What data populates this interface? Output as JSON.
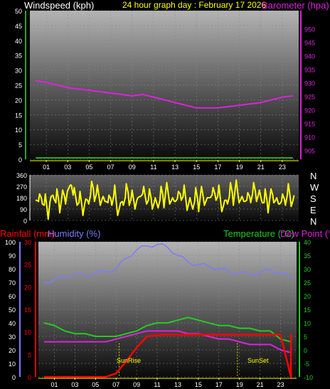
{
  "header": {
    "title": "24 hour graph day : February 17 2026",
    "left_label": "Windspeed (kph)",
    "right_label": "Barometer (hpa)"
  },
  "time_ticks": [
    "01",
    "03",
    "05",
    "07",
    "09",
    "11",
    "13",
    "15",
    "17",
    "19",
    "21",
    "23"
  ],
  "colors": {
    "wind": "#22aa22",
    "barometer": "#dd22dd",
    "direction": "#ffff00",
    "rain": "#ff0000",
    "humidity": "#7b7bff",
    "temperature": "#22cc22",
    "dewpoint": "#dd22dd",
    "title": "#ffff00",
    "axis": "#ffffff"
  },
  "chart_data": [
    {
      "type": "line",
      "x": [
        0,
        1,
        2,
        3,
        4,
        5,
        6,
        7,
        8,
        9,
        10,
        11,
        12,
        13,
        14,
        15,
        16,
        17,
        18,
        19,
        20,
        21,
        22,
        23,
        24
      ],
      "series": [
        {
          "name": "Windspeed (kph)",
          "axis": "left",
          "values": [
            0,
            0,
            0,
            0,
            0,
            0,
            0,
            0,
            0,
            0,
            0,
            0,
            0,
            0,
            0,
            0,
            0,
            0,
            0,
            0,
            0,
            0,
            0,
            0,
            0
          ]
        },
        {
          "name": "Barometer (hpa)",
          "axis": "right",
          "values": [
            931,
            930.5,
            929.5,
            928.5,
            928,
            927.5,
            927,
            926.5,
            926,
            925.5,
            926,
            925,
            924,
            923,
            922,
            921,
            921,
            921,
            921.5,
            922,
            922.5,
            923,
            924,
            925,
            925.5
          ]
        }
      ],
      "left_ylim": [
        0,
        50
      ],
      "left_yticks": [
        "0",
        "5",
        "10",
        "15",
        "20",
        "25",
        "30",
        "35",
        "40",
        "45",
        "50"
      ],
      "right_ylim": [
        902,
        957
      ],
      "right_yticks": [
        "905",
        "910",
        "915",
        "920",
        "925",
        "930",
        "935",
        "940",
        "945",
        "950"
      ]
    },
    {
      "type": "line",
      "series": [
        {
          "name": "Wind direction",
          "values": [
            160,
            150,
            180,
            120,
            90,
            150,
            200,
            140,
            160,
            170,
            190,
            230,
            280,
            200,
            170,
            140,
            120,
            130,
            160,
            200,
            250,
            210,
            180,
            170,
            150,
            140,
            170,
            190,
            120,
            100,
            150,
            180,
            220,
            170,
            150,
            160,
            190,
            210,
            180,
            160,
            170,
            140,
            130,
            160,
            200,
            230,
            190,
            160,
            150,
            170,
            210,
            190,
            160,
            140,
            120,
            150,
            170,
            200,
            180,
            160,
            180,
            200,
            210,
            190,
            150,
            120,
            160,
            190,
            220,
            250,
            200,
            170,
            150,
            160,
            190,
            210,
            230,
            200,
            170,
            140,
            160,
            180,
            200,
            160,
            130,
            150,
            170,
            200,
            190,
            160
          ]
        }
      ],
      "ylim": [
        0,
        360
      ],
      "yticks": [
        "0",
        "90",
        "180",
        "270",
        "360"
      ],
      "right_labels": [
        "N",
        "W",
        "S",
        "E",
        "N"
      ]
    },
    {
      "type": "line",
      "x": [
        0,
        1,
        2,
        3,
        4,
        5,
        6,
        7,
        8,
        9,
        10,
        11,
        12,
        13,
        14,
        15,
        16,
        17,
        18,
        19,
        20,
        21,
        22,
        23,
        24
      ],
      "series": [
        {
          "name": "Rainfall (mm)",
          "axis": "rain",
          "values": [
            0,
            0,
            0,
            0,
            0,
            0,
            0,
            0.8,
            3.5,
            6.5,
            9,
            9.3,
            9.4,
            9.4,
            9.4,
            9.4,
            9.4,
            9.4,
            9.4,
            9.4,
            9.4,
            9.4,
            9.4,
            9.4,
            0
          ]
        },
        {
          "name": "Humidity (%)",
          "axis": "humidity",
          "values": [
            70,
            72,
            74,
            76,
            75,
            77,
            78,
            80,
            88,
            94,
            97,
            98,
            96,
            90,
            85,
            83,
            82,
            80,
            78,
            77,
            76,
            77,
            79,
            77,
            73
          ]
        },
        {
          "name": "Temperature (°C)",
          "axis": "temp",
          "values": [
            10,
            9,
            7,
            6,
            6,
            5,
            5,
            5,
            6,
            7,
            9,
            10,
            10,
            11,
            12,
            11,
            10,
            9,
            9,
            8,
            8,
            7,
            7,
            4,
            3
          ]
        },
        {
          "name": "Dew Point (°C)",
          "axis": "temp",
          "values": [
            3,
            3,
            3,
            3,
            3,
            3,
            3,
            4,
            5,
            6,
            7,
            7,
            7,
            7,
            6,
            6,
            5,
            4,
            4,
            3,
            2,
            2,
            2,
            0,
            -1
          ]
        }
      ],
      "rain_ylim": [
        0,
        30
      ],
      "rain_yticks": [
        "0",
        "5",
        "10",
        "15",
        "20",
        "25",
        "30"
      ],
      "humidity_ylim": [
        0,
        100
      ],
      "humidity_yticks": [
        "0",
        "10",
        "20",
        "30",
        "40",
        "50",
        "60",
        "70",
        "80",
        "90",
        "100"
      ],
      "temp_ylim": [
        -10,
        40
      ],
      "temp_yticks": [
        "-10",
        "-5",
        "0",
        "5",
        "10",
        "15",
        "20",
        "25",
        "30",
        "35",
        "40"
      ],
      "labels": {
        "rain": "Rainfall (mm)",
        "humidity": "Humidity (%)",
        "temp": "Temperature (°C)",
        "dewpoint": "Dew Point (°C)",
        "sunrise": "SunRise",
        "sunset": "SunSet"
      },
      "sunrise_hour": 7.3,
      "sunset_hour": 18.8
    }
  ]
}
